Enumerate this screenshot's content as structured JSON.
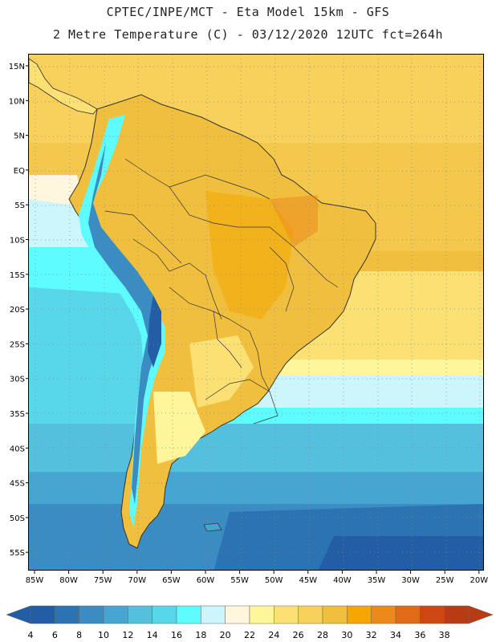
{
  "title": {
    "line1": "CPTEC/INPE/MCT -  Eta Model 15km - GFS",
    "line2": "2 Metre Temperature (C) - 03/12/2020 12UTC fct=264h"
  },
  "map": {
    "lat_labels": [
      "15N",
      "10N",
      "5N",
      "EQ",
      "5S",
      "10S",
      "15S",
      "20S",
      "25S",
      "30S",
      "35S",
      "40S",
      "45S",
      "50S",
      "55S"
    ],
    "lon_labels": [
      "85W",
      "80W",
      "75W",
      "70W",
      "65W",
      "60W",
      "55W",
      "50W",
      "45W",
      "40W",
      "35W",
      "30W",
      "25W",
      "20W"
    ]
  },
  "legend": {
    "values": [
      "4",
      "6",
      "8",
      "10",
      "12",
      "14",
      "16",
      "18",
      "20",
      "22",
      "24",
      "26",
      "28",
      "30",
      "32",
      "34",
      "36",
      "38"
    ],
    "colors": [
      "#235da6",
      "#2b73b2",
      "#3a8cc3",
      "#47a5d2",
      "#55c0de",
      "#58d7ea",
      "#5efbff",
      "#ccf5fc",
      "#fff7dd",
      "#fff59b",
      "#fbe174",
      "#f7d15b",
      "#f1bf3e",
      "#f3a700",
      "#eb8a1a",
      "#e06a16",
      "#cd4712",
      "#b93b14"
    ]
  }
}
